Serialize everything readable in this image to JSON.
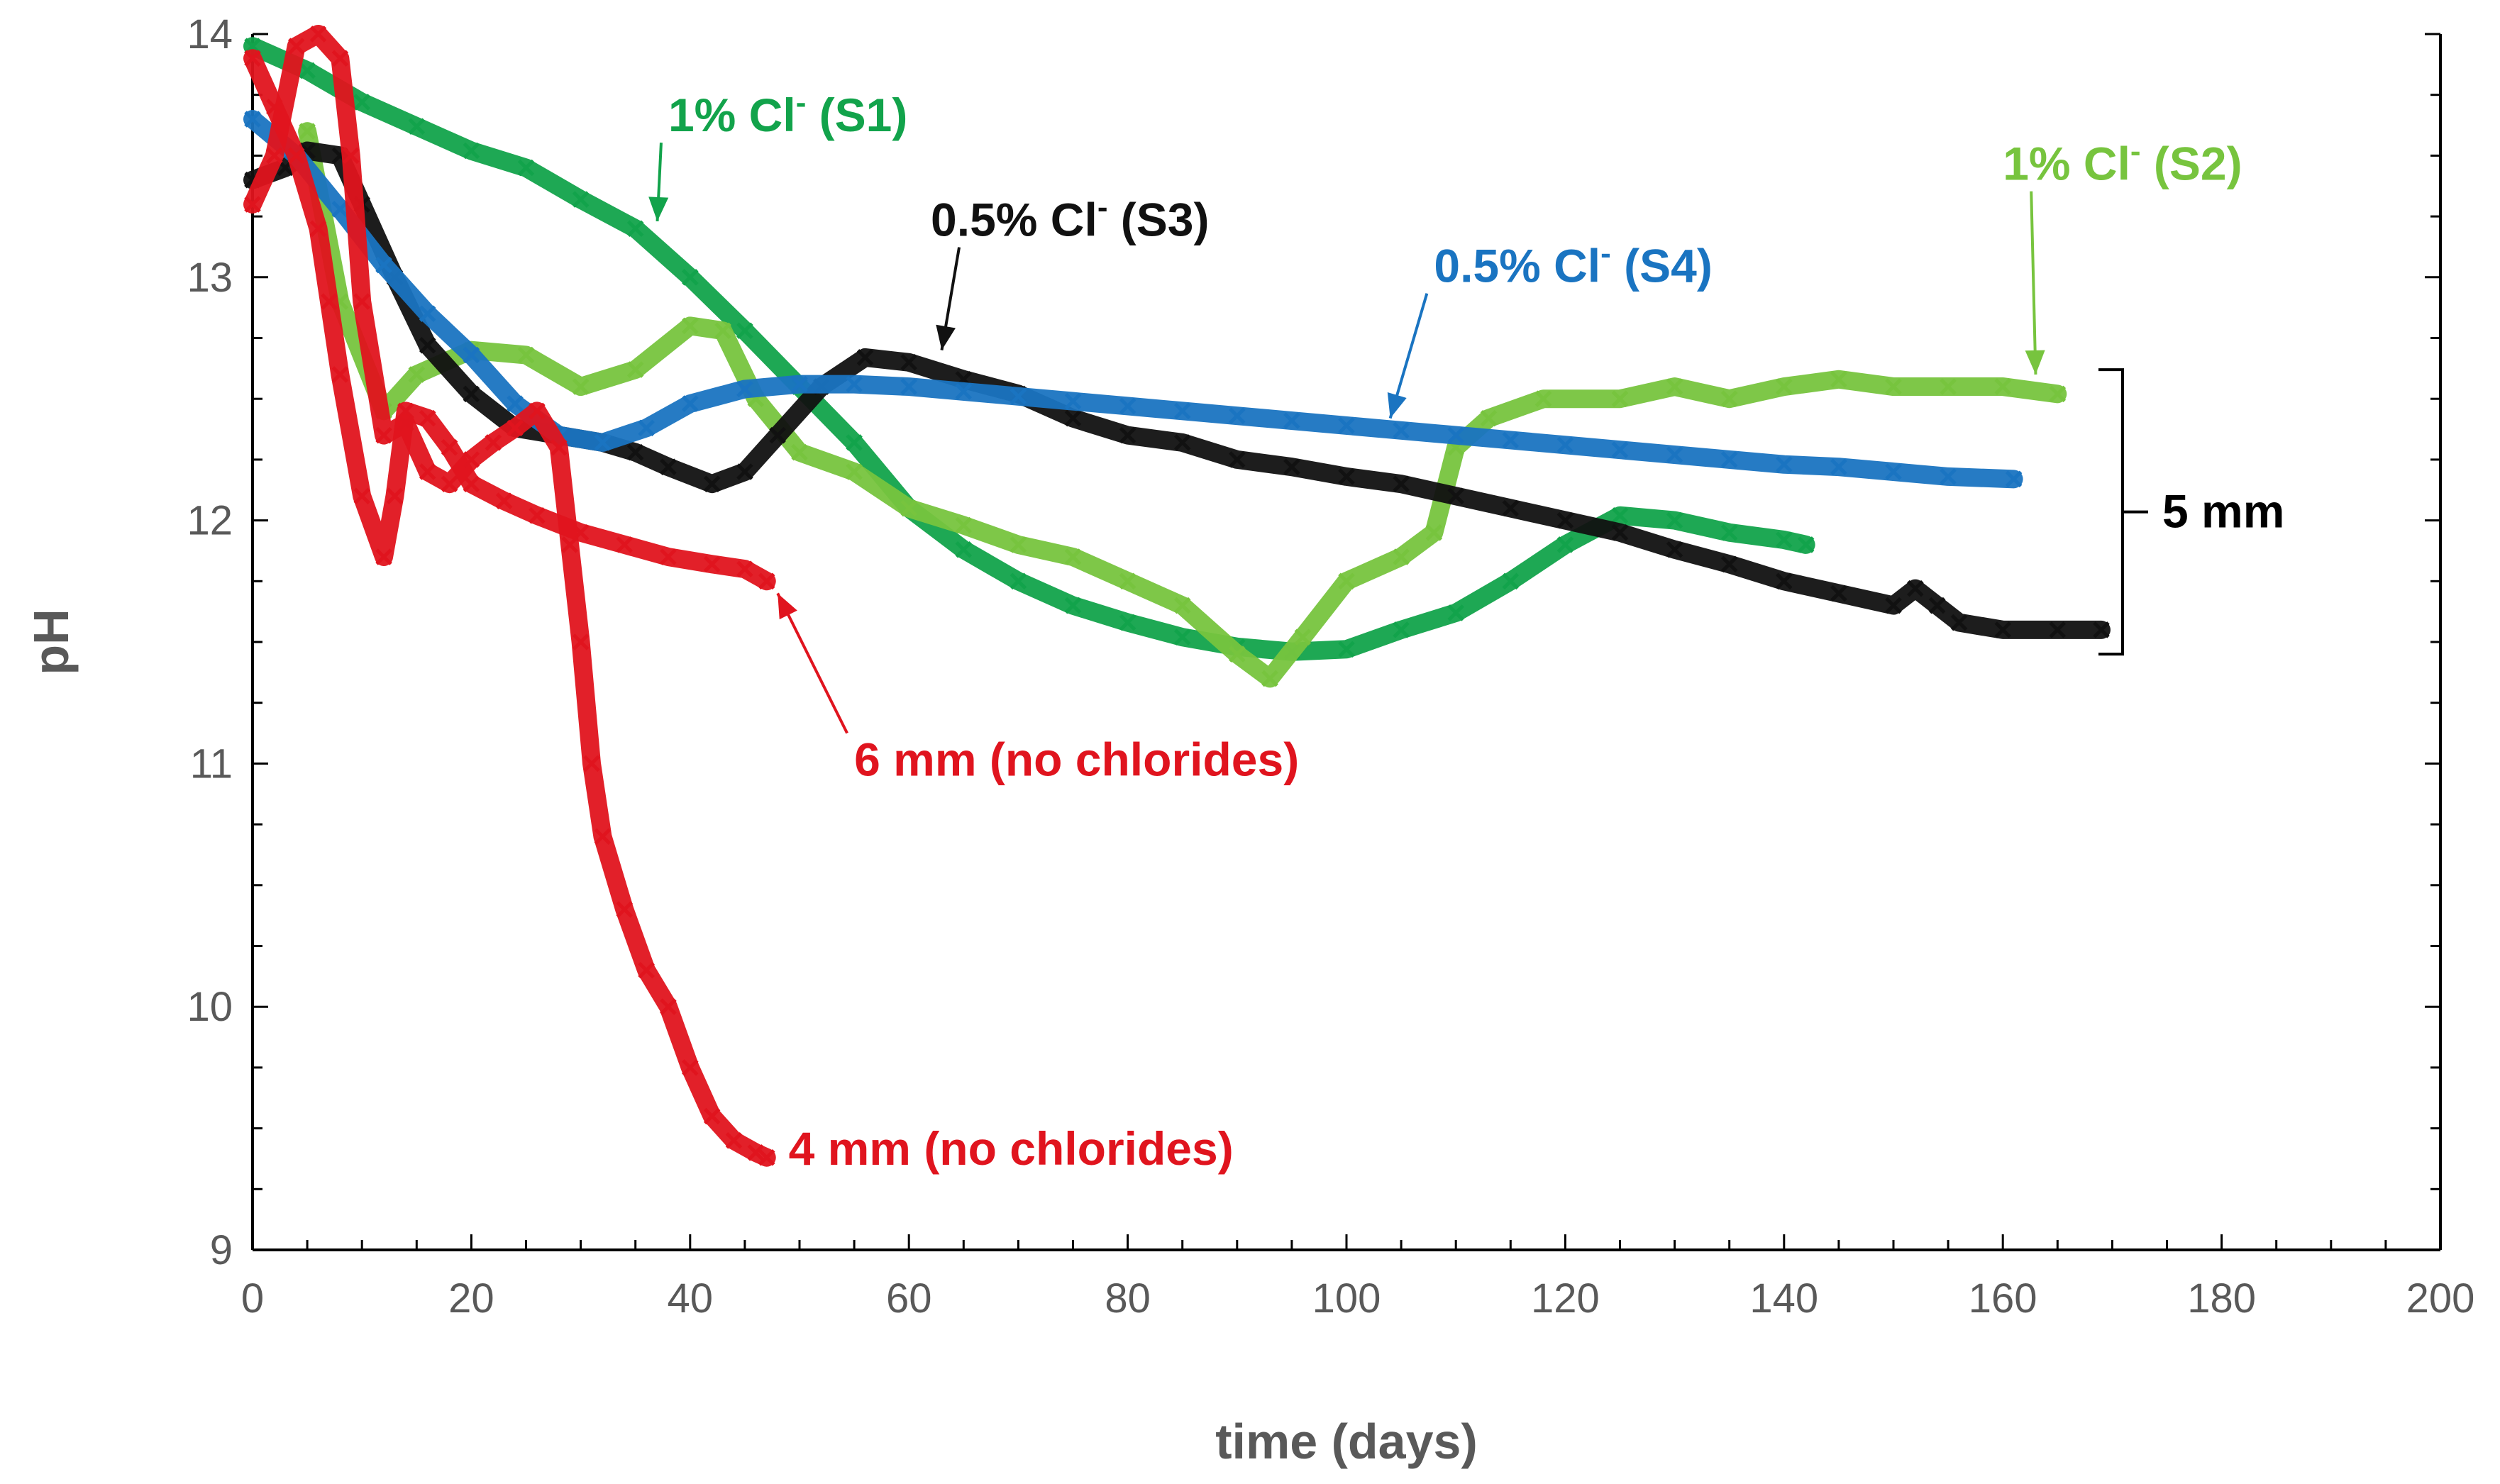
{
  "chart_data": {
    "type": "scatter",
    "title": "",
    "xlabel": "time (days)",
    "ylabel": "pH",
    "xlim": [
      0,
      200
    ],
    "ylim": [
      9,
      14
    ],
    "x_ticks": [
      0,
      20,
      40,
      60,
      80,
      100,
      120,
      140,
      160,
      180,
      200
    ],
    "y_ticks": [
      9,
      10,
      11,
      12,
      13,
      14
    ],
    "grid": false,
    "marker": "x",
    "colors": {
      "s1": "#12a34b",
      "s2": "#77c43e",
      "s3": "#111111",
      "s4": "#1a74c1",
      "no_chlorides": "#e0141e",
      "axis": "#000000",
      "tick_text": "#595959"
    },
    "series": [
      {
        "name": "1% Cl- (S1)",
        "color": "#12a34b",
        "points": [
          [
            0,
            13.95
          ],
          [
            5,
            13.85
          ],
          [
            10,
            13.72
          ],
          [
            15,
            13.62
          ],
          [
            20,
            13.52
          ],
          [
            25,
            13.45
          ],
          [
            30,
            13.32
          ],
          [
            35,
            13.2
          ],
          [
            40,
            13.0
          ],
          [
            45,
            12.78
          ],
          [
            50,
            12.55
          ],
          [
            55,
            12.32
          ],
          [
            60,
            12.05
          ],
          [
            65,
            11.88
          ],
          [
            70,
            11.75
          ],
          [
            75,
            11.65
          ],
          [
            80,
            11.58
          ],
          [
            85,
            11.52
          ],
          [
            90,
            11.48
          ],
          [
            95,
            11.46
          ],
          [
            100,
            11.47
          ],
          [
            105,
            11.55
          ],
          [
            110,
            11.62
          ],
          [
            115,
            11.75
          ],
          [
            120,
            11.9
          ],
          [
            125,
            12.02
          ],
          [
            130,
            12.0
          ],
          [
            135,
            11.95
          ],
          [
            140,
            11.92
          ],
          [
            142,
            11.9
          ]
        ]
      },
      {
        "name": "1% Cl- (S2)",
        "color": "#77c43e",
        "points": [
          [
            5,
            13.6
          ],
          [
            8,
            12.9
          ],
          [
            12,
            12.45
          ],
          [
            15,
            12.6
          ],
          [
            20,
            12.7
          ],
          [
            25,
            12.68
          ],
          [
            30,
            12.55
          ],
          [
            35,
            12.62
          ],
          [
            40,
            12.8
          ],
          [
            43,
            12.78
          ],
          [
            46,
            12.5
          ],
          [
            50,
            12.28
          ],
          [
            55,
            12.2
          ],
          [
            60,
            12.05
          ],
          [
            65,
            11.98
          ],
          [
            70,
            11.9
          ],
          [
            75,
            11.85
          ],
          [
            80,
            11.75
          ],
          [
            85,
            11.65
          ],
          [
            90,
            11.45
          ],
          [
            93,
            11.35
          ],
          [
            96,
            11.52
          ],
          [
            100,
            11.75
          ],
          [
            105,
            11.85
          ],
          [
            108,
            11.95
          ],
          [
            110,
            12.3
          ],
          [
            113,
            12.42
          ],
          [
            118,
            12.5
          ],
          [
            125,
            12.5
          ],
          [
            130,
            12.55
          ],
          [
            135,
            12.5
          ],
          [
            140,
            12.55
          ],
          [
            145,
            12.58
          ],
          [
            150,
            12.55
          ],
          [
            155,
            12.55
          ],
          [
            160,
            12.55
          ],
          [
            165,
            12.52
          ]
        ]
      },
      {
        "name": "0.5% Cl- (S3)",
        "color": "#111111",
        "points": [
          [
            0,
            13.4
          ],
          [
            3,
            13.45
          ],
          [
            5,
            13.52
          ],
          [
            8,
            13.5
          ],
          [
            10,
            13.3
          ],
          [
            13,
            13.0
          ],
          [
            16,
            12.72
          ],
          [
            20,
            12.52
          ],
          [
            24,
            12.38
          ],
          [
            28,
            12.35
          ],
          [
            32,
            12.32
          ],
          [
            35,
            12.28
          ],
          [
            38,
            12.22
          ],
          [
            42,
            12.15
          ],
          [
            45,
            12.2
          ],
          [
            48,
            12.35
          ],
          [
            52,
            12.55
          ],
          [
            56,
            12.67
          ],
          [
            60,
            12.65
          ],
          [
            65,
            12.58
          ],
          [
            70,
            12.52
          ],
          [
            75,
            12.42
          ],
          [
            80,
            12.35
          ],
          [
            85,
            12.32
          ],
          [
            90,
            12.25
          ],
          [
            95,
            12.22
          ],
          [
            100,
            12.18
          ],
          [
            105,
            12.15
          ],
          [
            110,
            12.1
          ],
          [
            115,
            12.05
          ],
          [
            120,
            12.0
          ],
          [
            125,
            11.95
          ],
          [
            130,
            11.88
          ],
          [
            135,
            11.82
          ],
          [
            140,
            11.75
          ],
          [
            145,
            11.7
          ],
          [
            150,
            11.65
          ],
          [
            152,
            11.72
          ],
          [
            154,
            11.65
          ],
          [
            156,
            11.58
          ],
          [
            160,
            11.55
          ],
          [
            165,
            11.55
          ],
          [
            169,
            11.55
          ]
        ]
      },
      {
        "name": "0.5% Cl- (S4)",
        "color": "#1a74c1",
        "points": [
          [
            0,
            13.65
          ],
          [
            4,
            13.5
          ],
          [
            8,
            13.28
          ],
          [
            12,
            13.05
          ],
          [
            16,
            12.85
          ],
          [
            20,
            12.68
          ],
          [
            24,
            12.48
          ],
          [
            28,
            12.35
          ],
          [
            32,
            12.32
          ],
          [
            36,
            12.38
          ],
          [
            40,
            12.48
          ],
          [
            45,
            12.54
          ],
          [
            50,
            12.56
          ],
          [
            55,
            12.56
          ],
          [
            60,
            12.55
          ],
          [
            65,
            12.53
          ],
          [
            70,
            12.51
          ],
          [
            75,
            12.49
          ],
          [
            80,
            12.47
          ],
          [
            85,
            12.45
          ],
          [
            90,
            12.43
          ],
          [
            95,
            12.41
          ],
          [
            100,
            12.39
          ],
          [
            105,
            12.37
          ],
          [
            110,
            12.35
          ],
          [
            115,
            12.33
          ],
          [
            120,
            12.31
          ],
          [
            125,
            12.29
          ],
          [
            130,
            12.27
          ],
          [
            135,
            12.25
          ],
          [
            140,
            12.23
          ],
          [
            145,
            12.22
          ],
          [
            150,
            12.2
          ],
          [
            155,
            12.18
          ],
          [
            161,
            12.17
          ]
        ]
      },
      {
        "name": "6 mm (no chlorides)",
        "color": "#e0141e",
        "points": [
          [
            0,
            13.9
          ],
          [
            2,
            13.7
          ],
          [
            4,
            13.5
          ],
          [
            6,
            13.2
          ],
          [
            7,
            12.9
          ],
          [
            8,
            12.6
          ],
          [
            10,
            12.1
          ],
          [
            12,
            11.85
          ],
          [
            13,
            12.1
          ],
          [
            14,
            12.45
          ],
          [
            16,
            12.42
          ],
          [
            18,
            12.3
          ],
          [
            20,
            12.15
          ],
          [
            23,
            12.08
          ],
          [
            26,
            12.02
          ],
          [
            30,
            11.95
          ],
          [
            34,
            11.9
          ],
          [
            38,
            11.85
          ],
          [
            42,
            11.82
          ],
          [
            45,
            11.8
          ],
          [
            47,
            11.75
          ]
        ]
      },
      {
        "name": "4 mm (no chlorides)",
        "color": "#e0141e",
        "points": [
          [
            0,
            13.3
          ],
          [
            2,
            13.5
          ],
          [
            4,
            13.95
          ],
          [
            6,
            14.0
          ],
          [
            8,
            13.9
          ],
          [
            9,
            13.5
          ],
          [
            10,
            12.9
          ],
          [
            12,
            12.35
          ],
          [
            14,
            12.4
          ],
          [
            16,
            12.2
          ],
          [
            18,
            12.15
          ],
          [
            20,
            12.25
          ],
          [
            22,
            12.32
          ],
          [
            24,
            12.38
          ],
          [
            26,
            12.45
          ],
          [
            28,
            12.3
          ],
          [
            29,
            11.9
          ],
          [
            30,
            11.5
          ],
          [
            31,
            11.0
          ],
          [
            32,
            10.7
          ],
          [
            34,
            10.4
          ],
          [
            36,
            10.15
          ],
          [
            38,
            10.0
          ],
          [
            40,
            9.75
          ],
          [
            42,
            9.55
          ],
          [
            44,
            9.45
          ],
          [
            46,
            9.4
          ],
          [
            47,
            9.38
          ]
        ]
      }
    ],
    "annotations": [
      {
        "id": "s1",
        "text_main": "1% Cl",
        "text_sup": "-",
        "text_tail": " (S1)",
        "color": "#12a34b",
        "at": [
          38,
          13.6
        ],
        "arrow_to": [
          37,
          13.23
        ]
      },
      {
        "id": "s2",
        "text_main": "1% Cl",
        "text_sup": "-",
        "text_tail": " (S2)",
        "color": "#77c43e",
        "at": [
          160,
          13.4
        ],
        "arrow_to": [
          163,
          12.6
        ]
      },
      {
        "id": "s3",
        "text_main": "0.5% Cl",
        "text_sup": "-",
        "text_tail": " (S3)",
        "color": "#111111",
        "at": [
          62,
          13.17
        ],
        "arrow_to": [
          63,
          12.7
        ]
      },
      {
        "id": "s4",
        "text_main": "0.5% Cl",
        "text_sup": "-",
        "text_tail": " (S4)",
        "color": "#1a74c1",
        "at": [
          108,
          12.98
        ],
        "arrow_to": [
          104,
          12.42
        ]
      },
      {
        "id": "6mm",
        "text_main": "6 mm (no chlorides)",
        "text_sup": "",
        "text_tail": "",
        "color": "#e0141e",
        "at": [
          55,
          10.95
        ],
        "arrow_to": [
          48,
          11.7
        ]
      },
      {
        "id": "4mm",
        "text_main": "4 mm (no chlorides)",
        "text_sup": "",
        "text_tail": "",
        "color": "#e0141e",
        "at": [
          49,
          9.35
        ],
        "arrow_to": null
      }
    ],
    "bracket": {
      "label": "5 mm",
      "y_range": [
        11.45,
        12.62
      ]
    }
  }
}
